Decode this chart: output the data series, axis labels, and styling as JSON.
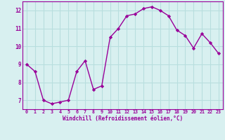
{
  "x": [
    0,
    1,
    2,
    3,
    4,
    5,
    6,
    7,
    8,
    9,
    10,
    11,
    12,
    13,
    14,
    15,
    16,
    17,
    18,
    19,
    20,
    21,
    22,
    23
  ],
  "y": [
    9.0,
    8.6,
    7.0,
    6.8,
    6.9,
    7.0,
    8.6,
    9.2,
    7.6,
    7.8,
    10.5,
    11.0,
    11.7,
    11.8,
    12.1,
    12.2,
    12.0,
    11.7,
    10.9,
    10.6,
    9.9,
    10.7,
    10.2,
    9.6
  ],
  "line_color": "#990099",
  "marker": "D",
  "marker_size": 2.2,
  "line_width": 1.0,
  "bg_color": "#d8f0f0",
  "grid_color": "#b8dede",
  "xlabel": "Windchill (Refroidissement éolien,°C)",
  "xlabel_color": "#990099",
  "tick_color": "#990099",
  "xlim": [
    -0.5,
    23.5
  ],
  "ylim": [
    6.5,
    12.5
  ],
  "yticks": [
    7,
    8,
    9,
    10,
    11,
    12
  ],
  "xticks": [
    0,
    1,
    2,
    3,
    4,
    5,
    6,
    7,
    8,
    9,
    10,
    11,
    12,
    13,
    14,
    15,
    16,
    17,
    18,
    19,
    20,
    21,
    22,
    23
  ]
}
